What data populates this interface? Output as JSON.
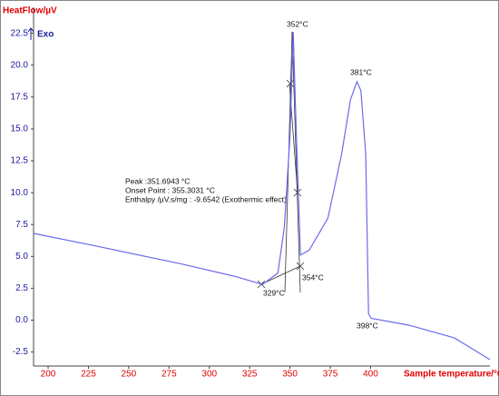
{
  "chart_data": {
    "type": "line",
    "y_axis_label": "HeatFlow/µV",
    "y_axis_sublabel": "Exo",
    "x_axis_label": "Sample temperature/°C",
    "x": [
      191,
      226.5,
      283,
      317,
      333,
      342.5,
      346.5,
      350,
      352,
      354,
      356.5,
      362,
      373.5,
      382,
      387.5,
      391.5,
      394,
      397,
      398.7,
      400.4,
      424,
      452,
      474
    ],
    "series": [
      {
        "color": "#6a6aee",
        "values": [
          6.8,
          5.9,
          4.4,
          3.4,
          2.8,
          3.7,
          7.3,
          14.4,
          22.6,
          14.4,
          5.1,
          5.5,
          8.0,
          13.0,
          17.3,
          18.7,
          18.0,
          13.0,
          0.5,
          0.14,
          -0.4,
          -1.4,
          -3.1
        ]
      }
    ],
    "xlim": [
      191,
      474
    ],
    "ylim": [
      -3.6,
      24.4
    ],
    "xticks": [
      200,
      225,
      250,
      275,
      300,
      325,
      350,
      375,
      400
    ],
    "yticks": [
      22.5,
      {
        "value": 20,
        "label": "20.0"
      },
      17.5,
      {
        "value": 15,
        "label": "15.0"
      },
      12.5,
      {
        "value": 10,
        "label": "10.0"
      },
      7.5,
      {
        "value": 5,
        "label": "5.0"
      },
      2.5,
      {
        "value": 0,
        "label": "0.0"
      },
      -2.5
    ],
    "annotations": [
      "352°C",
      "381°C",
      "329°C",
      "354°C",
      "398°C",
      "Peak :351.6943 °C",
      "Onset Point : 355.3031 °C",
      "Enthalpy /µV.s/mg : -9.6542 (Exothermic effect)"
    ]
  }
}
